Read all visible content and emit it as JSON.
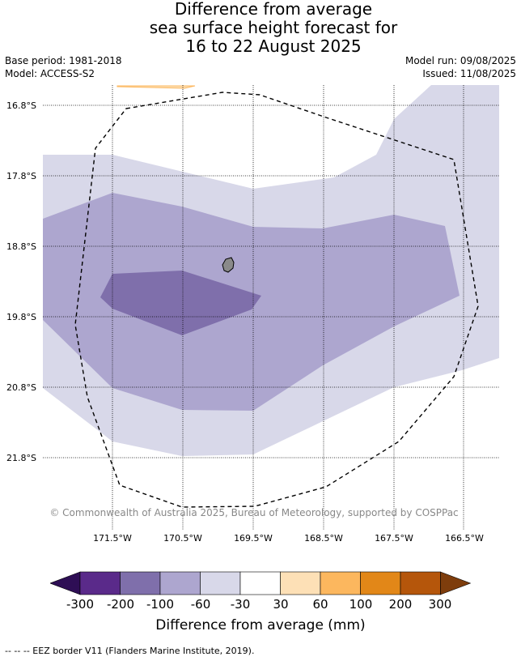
{
  "title": {
    "line1": "Difference from average",
    "line2": "sea surface height forecast for",
    "line3": "16 to 22 August 2025"
  },
  "meta": {
    "base_period": "Base period: 1981-2018",
    "model": "Model: ACCESS-S2",
    "model_run": "Model run: 09/08/2025",
    "issued": "Issued: 11/08/2025"
  },
  "axes": {
    "lat_labels": [
      "16.8°S",
      "17.8°S",
      "18.8°S",
      "19.8°S",
      "20.8°S",
      "21.8°S"
    ],
    "lon_labels": [
      "171.5°W",
      "170.5°W",
      "169.5°W",
      "168.5°W",
      "167.5°W",
      "166.5°W"
    ]
  },
  "copyright": "© Commonwealth of Australia 2025, Bureau of Meteorology, supported by COSPPac",
  "colorbar": {
    "ticks": [
      "-300",
      "-200",
      "-100",
      "-60",
      "-30",
      "30",
      "60",
      "100",
      "200",
      "300"
    ],
    "colors": [
      "#2e0e55",
      "#5a2a8a",
      "#7f6fab",
      "#ada6cf",
      "#d8d8e9",
      "#ffffff",
      "#fde0b6",
      "#fcb75e",
      "#e28718",
      "#b5560b",
      "#7e3d0c"
    ],
    "label": "Difference from average (mm)"
  },
  "legend": {
    "eez_note": "--  --  -- EEZ border V11 (Flanders Marine Institute, 2019)."
  }
}
